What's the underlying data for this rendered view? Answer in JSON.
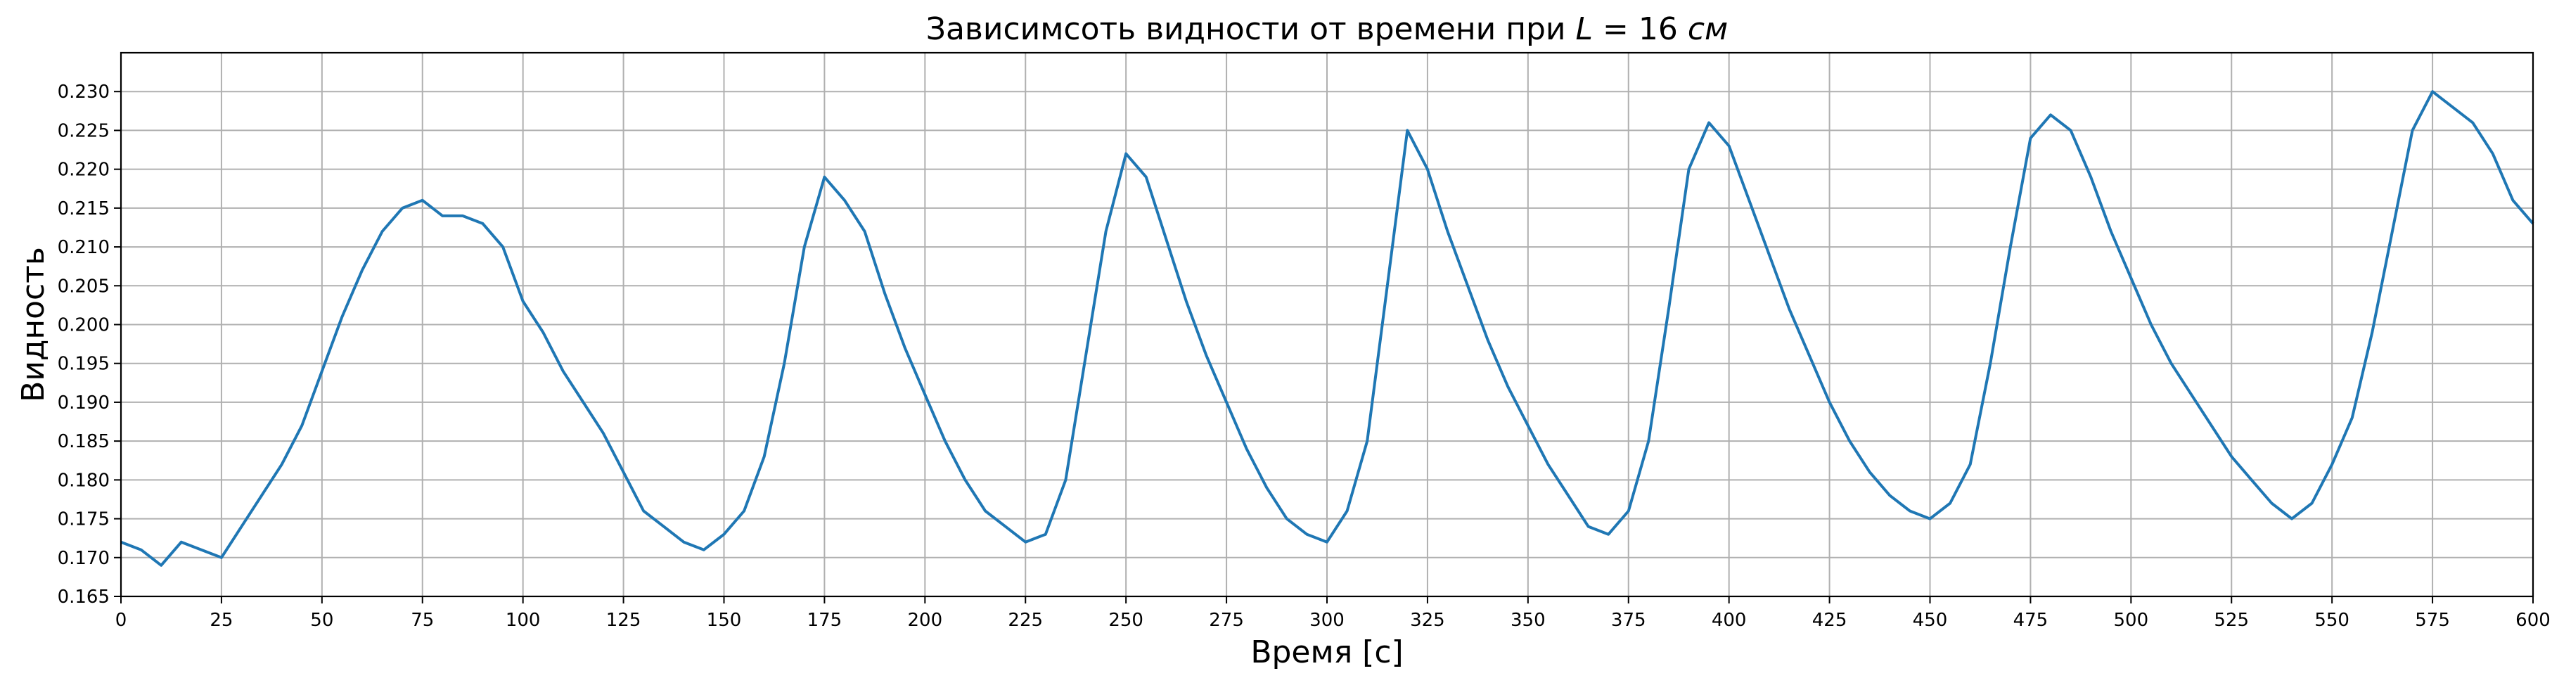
{
  "chart_data": {
    "type": "line",
    "title": {
      "prefix": "Зависимсоть видности от времени при ",
      "variable": "L",
      "equals": " = 16 ",
      "unit": "см"
    },
    "xlabel": "Время [с]",
    "ylabel": "Видность",
    "xlim": [
      0,
      600
    ],
    "ylim": [
      0.165,
      0.235
    ],
    "xticks": [
      0,
      25,
      50,
      75,
      100,
      125,
      150,
      175,
      200,
      225,
      250,
      275,
      300,
      325,
      350,
      375,
      400,
      425,
      450,
      475,
      500,
      525,
      550,
      575,
      600
    ],
    "yticks": [
      0.165,
      0.17,
      0.175,
      0.18,
      0.185,
      0.19,
      0.195,
      0.2,
      0.205,
      0.21,
      0.215,
      0.22,
      0.225,
      0.23
    ],
    "xtick_labels": [
      "0",
      "25",
      "50",
      "75",
      "100",
      "125",
      "150",
      "175",
      "200",
      "225",
      "250",
      "275",
      "300",
      "325",
      "350",
      "375",
      "400",
      "425",
      "450",
      "475",
      "500",
      "525",
      "550",
      "575",
      "600"
    ],
    "ytick_labels": [
      "0.165",
      "0.170",
      "0.175",
      "0.180",
      "0.185",
      "0.190",
      "0.195",
      "0.200",
      "0.205",
      "0.210",
      "0.215",
      "0.220",
      "0.225",
      "0.230"
    ],
    "grid": true,
    "color": "#1f77b4",
    "series": [
      {
        "x": [
          0,
          5,
          10,
          15,
          20,
          25,
          30,
          35,
          40,
          45,
          50,
          55,
          60,
          65,
          70,
          75,
          80,
          85,
          90,
          95,
          100,
          105,
          110,
          115,
          120,
          125,
          128,
          130,
          135,
          140,
          145,
          150,
          155,
          160,
          165,
          170,
          175,
          180,
          185,
          190,
          195,
          200,
          205,
          210,
          215,
          220,
          225,
          230,
          235,
          240,
          245,
          250,
          255,
          260,
          265,
          270,
          275,
          280,
          285,
          290,
          295,
          300,
          305,
          310,
          315,
          320,
          325,
          330,
          335,
          340,
          345,
          350,
          355,
          360,
          365,
          370,
          375,
          380,
          385,
          390,
          395,
          400,
          405,
          410,
          415,
          420,
          425,
          430,
          435,
          440,
          445,
          450,
          455,
          460,
          465,
          470,
          475,
          480,
          485,
          490,
          495,
          500,
          505,
          510,
          515,
          520,
          525,
          530,
          535,
          540,
          545,
          550,
          555,
          560,
          565,
          570,
          575,
          580,
          585,
          590,
          595,
          600
        ],
        "y": [
          0.172,
          0.171,
          0.169,
          0.172,
          0.171,
          0.17,
          0.174,
          0.178,
          0.182,
          0.187,
          0.194,
          0.201,
          0.207,
          0.212,
          0.215,
          0.216,
          0.214,
          0.214,
          0.213,
          0.21,
          0.203,
          0.199,
          0.194,
          0.19,
          0.186,
          0.181,
          0.178,
          0.176,
          0.174,
          0.172,
          0.171,
          0.173,
          0.176,
          0.183,
          0.195,
          0.21,
          0.219,
          0.216,
          0.212,
          0.204,
          0.197,
          0.191,
          0.185,
          0.18,
          0.176,
          0.174,
          0.172,
          0.173,
          0.18,
          0.196,
          0.212,
          0.222,
          0.219,
          0.211,
          0.203,
          0.196,
          0.19,
          0.184,
          0.179,
          0.175,
          0.173,
          0.172,
          0.176,
          0.185,
          0.205,
          0.225,
          0.22,
          0.212,
          0.205,
          0.198,
          0.192,
          0.187,
          0.182,
          0.178,
          0.174,
          0.173,
          0.176,
          0.185,
          0.202,
          0.22,
          0.226,
          0.223,
          0.216,
          0.209,
          0.202,
          0.196,
          0.19,
          0.185,
          0.181,
          0.178,
          0.176,
          0.175,
          0.177,
          0.182,
          0.195,
          0.21,
          0.224,
          0.227,
          0.225,
          0.219,
          0.212,
          0.206,
          0.2,
          0.195,
          0.191,
          0.187,
          0.183,
          0.18,
          0.177,
          0.175,
          0.177,
          0.182,
          0.188,
          0.199,
          0.212,
          0.225,
          0.23,
          0.228,
          0.226,
          0.222,
          0.216,
          0.213
        ]
      }
    ]
  }
}
